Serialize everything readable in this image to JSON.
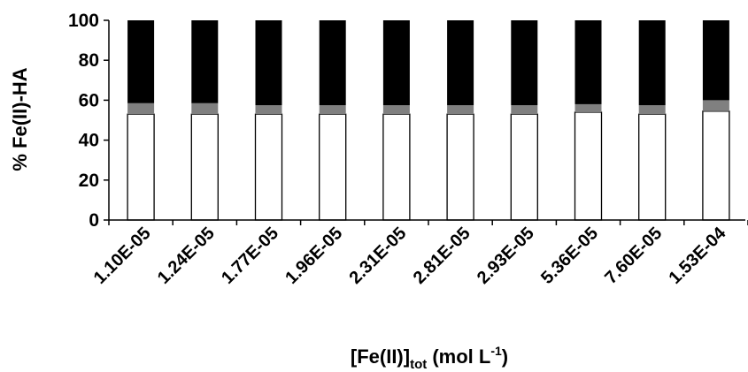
{
  "chart_data": {
    "type": "bar",
    "stacked": true,
    "title": "",
    "xlabel_main": "[Fe(II)]",
    "xlabel_sub": "tot",
    "xlabel_unit": " (mol L",
    "xlabel_sup": "-1",
    "xlabel_close": ")",
    "ylabel": "% Fe(II)-HA",
    "ylim": [
      0,
      100
    ],
    "yticks": [
      0,
      20,
      40,
      60,
      80,
      100
    ],
    "grid": false,
    "legend": "none",
    "categories": [
      "1.10E-05",
      "1.24E-05",
      "1.77E-05",
      "1.96E-05",
      "2.31E-05",
      "2.81E-05",
      "2.93E-05",
      "5.36E-05",
      "7.60E-05",
      "1.53E-04"
    ],
    "series": [
      {
        "color": "#ffffff",
        "values": [
          53,
          53,
          53,
          53,
          53,
          53,
          53,
          54,
          53,
          54.5
        ]
      },
      {
        "color": "#808080",
        "values": [
          5.5,
          5.5,
          4.5,
          4.5,
          4.5,
          4.5,
          4.5,
          4,
          4.5,
          5.5
        ]
      },
      {
        "color": "#000000",
        "values": [
          41.5,
          41.5,
          42.5,
          42.5,
          42.5,
          42.5,
          42.5,
          42,
          42.5,
          40
        ]
      }
    ]
  }
}
